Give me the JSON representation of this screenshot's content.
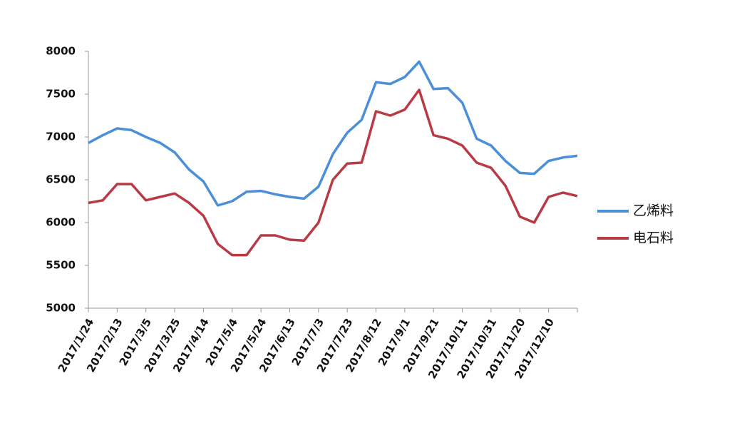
{
  "chart_data": {
    "type": "line",
    "categories": [
      "2017/1/24",
      null,
      "2017/2/13",
      null,
      "2017/3/5",
      null,
      "2017/3/25",
      null,
      "2017/4/14",
      null,
      "2017/5/4",
      null,
      "2017/5/24",
      null,
      "2017/6/13",
      null,
      "2017/7/3",
      null,
      "2017/7/23",
      null,
      "2017/8/12",
      null,
      "2017/9/1",
      null,
      "2017/9/21",
      null,
      "2017/10/11",
      null,
      "2017/10/31",
      null,
      "2017/11/20",
      null,
      "2017/12/10",
      null,
      null
    ],
    "series": [
      {
        "name": "乙烯料",
        "color": "#4a8fd8",
        "values": [
          6930,
          7020,
          7100,
          7080,
          7000,
          6930,
          6820,
          6620,
          6480,
          6200,
          6250,
          6360,
          6370,
          6330,
          6300,
          6280,
          6420,
          6800,
          7050,
          7200,
          7640,
          7620,
          7700,
          7880,
          7560,
          7570,
          7400,
          6980,
          6900,
          6720,
          6580,
          6570,
          6720,
          6760,
          6780
        ]
      },
      {
        "name": "电石料",
        "color": "#b83a45",
        "values": [
          6230,
          6260,
          6450,
          6450,
          6260,
          6300,
          6340,
          6230,
          6080,
          5750,
          5620,
          5620,
          5850,
          5850,
          5800,
          5790,
          6000,
          6500,
          6690,
          6700,
          7300,
          7250,
          7320,
          7550,
          7020,
          6980,
          6900,
          6700,
          6640,
          6430,
          6070,
          6000,
          6300,
          6350,
          6310
        ]
      }
    ],
    "ylim": [
      5000,
      8000
    ],
    "yticks": [
      5000,
      5500,
      6000,
      6500,
      7000,
      7500,
      8000
    ],
    "legend": "right"
  }
}
